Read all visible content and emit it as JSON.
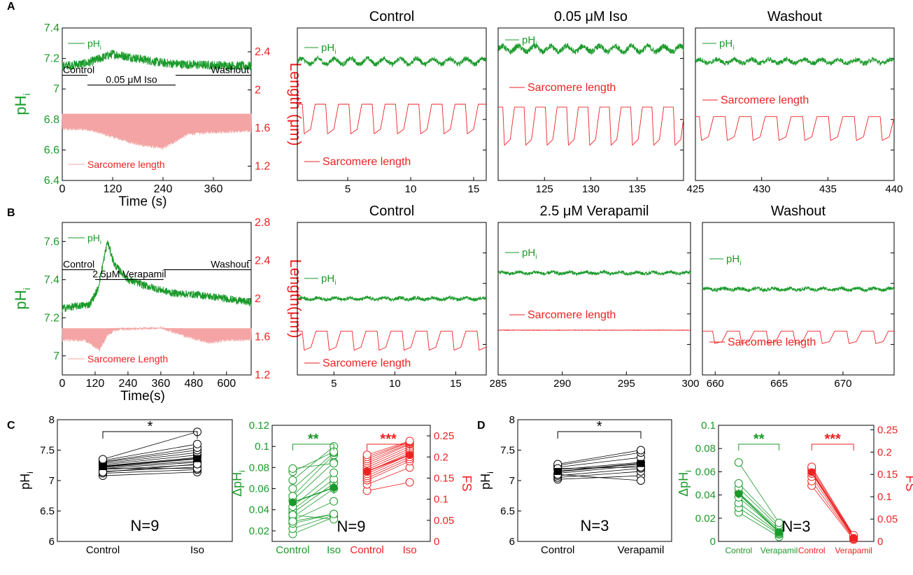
{
  "colors": {
    "green": "#1a9a2a",
    "red": "#ee2222",
    "pink": "#f4a4a4",
    "black": "#000000"
  },
  "panel_labels": [
    "A",
    "B",
    "C",
    "D"
  ],
  "chart_data": [
    {
      "id": "A-overview",
      "type": "line",
      "xlabel": "Time (s)",
      "xlim": [
        0,
        450
      ],
      "xticks": [
        "0",
        "120",
        "240",
        "360"
      ],
      "y_left": {
        "label": "pH",
        "label_sub": "i",
        "lim": [
          6.4,
          7.4
        ],
        "ticks": [
          "6.4",
          "6.6",
          "6.8",
          "7",
          "7.2",
          "7.4"
        ]
      },
      "y_right": {
        "label": "Length (μm)",
        "lim": [
          1.05,
          2.65
        ],
        "ticks": [
          "1.2",
          "1.6",
          "2",
          "2.4"
        ]
      },
      "legend": {
        "ph": "pH",
        "ph_sub": "i",
        "sl": "Sarcomere length"
      },
      "protocol": [
        {
          "label": "Control",
          "x": [
            0,
            60
          ]
        },
        {
          "label": "0.05 μM Iso",
          "x": [
            60,
            270
          ]
        },
        {
          "label": "Washout",
          "x": [
            270,
            450
          ]
        }
      ],
      "series": [
        {
          "name": "pH",
          "trace": "noise",
          "mean": [
            [
              0,
              7.15
            ],
            [
              60,
              7.17
            ],
            [
              120,
              7.23
            ],
            [
              180,
              7.2
            ],
            [
              240,
              7.17
            ],
            [
              300,
              7.16
            ],
            [
              450,
              7.15
            ]
          ],
          "amp": 0.03
        },
        {
          "name": "Sarcomere length",
          "trace": "band",
          "top": [
            [
              0,
              1.75
            ],
            [
              450,
              1.75
            ]
          ],
          "bottom": [
            [
              0,
              1.57
            ],
            [
              60,
              1.57
            ],
            [
              120,
              1.49
            ],
            [
              180,
              1.41
            ],
            [
              240,
              1.37
            ],
            [
              300,
              1.52
            ],
            [
              360,
              1.54
            ],
            [
              450,
              1.55
            ]
          ]
        }
      ]
    },
    {
      "id": "A-control",
      "type": "line",
      "title": "Control",
      "xlim": [
        1,
        16
      ],
      "xticks": [
        "5",
        "10",
        "15"
      ],
      "ylim": [
        1.05,
        2.65
      ],
      "legend": {
        "ph": "pH",
        "ph_sub": "i",
        "sl": "Sarcomere length"
      },
      "series": [
        {
          "name": "pH",
          "trace": "noise",
          "base": 2.3,
          "amp": 0.025,
          "wave": 0.03
        },
        {
          "name": "Sarcomere length",
          "trace": "twitch",
          "peak": 1.85,
          "trough": 1.54,
          "period": 1.85,
          "start": 1.4
        }
      ]
    },
    {
      "id": "A-iso",
      "type": "line",
      "title": "0.05 μM Iso",
      "xlim": [
        120,
        140
      ],
      "xticks": [
        "125",
        "130",
        "135"
      ],
      "ylim": [
        1.05,
        2.65
      ],
      "legend": {
        "ph": "pH",
        "ph_sub": "i",
        "sl": "Sarcomere length"
      },
      "series": [
        {
          "name": "pH",
          "trace": "noise",
          "base": 2.43,
          "amp": 0.03,
          "wave": 0.03
        },
        {
          "name": "Sarcomere length",
          "trace": "twitch",
          "peak": 1.82,
          "trough": 1.42,
          "period": 2.3,
          "start": 120.5
        }
      ]
    },
    {
      "id": "A-washout",
      "type": "line",
      "title": "Washout",
      "xlim": [
        425,
        440
      ],
      "xticks": [
        "425",
        "430",
        "435",
        "440"
      ],
      "ylim": [
        1.05,
        2.65
      ],
      "legend": {
        "ph": "pH",
        "ph_sub": "i",
        "sl": "Sarcomere length"
      },
      "series": [
        {
          "name": "pH",
          "trace": "noise",
          "base": 2.3,
          "amp": 0.025,
          "wave": 0.02
        },
        {
          "name": "Sarcomere length",
          "trace": "twitch",
          "peak": 1.72,
          "trough": 1.47,
          "period": 1.95,
          "start": 425.3
        }
      ]
    },
    {
      "id": "B-overview",
      "type": "line",
      "xlabel": "Time(s)",
      "xlim": [
        0,
        690
      ],
      "xticks": [
        "0",
        "120",
        "240",
        "360",
        "480",
        "600"
      ],
      "y_left": {
        "label": "pH",
        "label_sub": "i",
        "lim": [
          6.9,
          7.7
        ],
        "ticks": [
          "7",
          "7.2",
          "7.4",
          "7.6"
        ]
      },
      "y_right": {
        "label": "Length(μm)",
        "lim": [
          1.2,
          2.8
        ],
        "ticks": [
          "1.2",
          "1.6",
          "2",
          "2.4",
          "2.8"
        ]
      },
      "legend": {
        "ph": "pH",
        "ph_sub": "i",
        "sl": "Sarcomere Length"
      },
      "protocol": [
        {
          "label": "Control",
          "x": [
            0,
            120
          ]
        },
        {
          "label": "2.5μM Verapamil",
          "x": [
            120,
            370
          ]
        },
        {
          "label": "Washout",
          "x": [
            370,
            690
          ]
        }
      ],
      "series": [
        {
          "name": "pH",
          "trace": "noise",
          "mean": [
            [
              0,
              7.25
            ],
            [
              100,
              7.27
            ],
            [
              130,
              7.35
            ],
            [
              165,
              7.6
            ],
            [
              190,
              7.48
            ],
            [
              240,
              7.4
            ],
            [
              300,
              7.37
            ],
            [
              400,
              7.33
            ],
            [
              500,
              7.32
            ],
            [
              600,
              7.3
            ],
            [
              690,
              7.28
            ]
          ],
          "amp": 0.02
        },
        {
          "name": "Sarcomere Length",
          "trace": "band",
          "top": [
            [
              0,
              1.69
            ],
            [
              690,
              1.69
            ]
          ],
          "bottom": [
            [
              0,
              1.55
            ],
            [
              80,
              1.55
            ],
            [
              110,
              1.5
            ],
            [
              135,
              1.44
            ],
            [
              165,
              1.6
            ],
            [
              200,
              1.66
            ],
            [
              360,
              1.68
            ],
            [
              400,
              1.64
            ],
            [
              460,
              1.58
            ],
            [
              540,
              1.52
            ],
            [
              600,
              1.55
            ],
            [
              690,
              1.55
            ]
          ]
        }
      ]
    },
    {
      "id": "B-control",
      "type": "line",
      "title": "Control",
      "xlim": [
        2,
        17.5
      ],
      "xticks": [
        "5",
        "10",
        "15"
      ],
      "ylim": [
        1.2,
        2.8
      ],
      "legend": {
        "ph": "pH",
        "ph_sub": "i",
        "sl": "Sarcomere length"
      },
      "series": [
        {
          "name": "pH",
          "trace": "noise",
          "base": 2.0,
          "amp": 0.018,
          "wave": 0.01
        },
        {
          "name": "Sarcomere length",
          "trace": "twitch",
          "peak": 1.66,
          "trough": 1.46,
          "period": 2.05,
          "start": 2.4
        }
      ]
    },
    {
      "id": "B-verapamil",
      "type": "line",
      "title": "2.5 μM Verapamil",
      "xlim": [
        285,
        300
      ],
      "xticks": [
        "285",
        "290",
        "295",
        "300"
      ],
      "ylim": [
        1.2,
        2.8
      ],
      "legend": {
        "ph": "pH",
        "ph_sub": "i",
        "sl": "Sarcomere length"
      },
      "series": [
        {
          "name": "pH",
          "trace": "noise",
          "base": 2.27,
          "amp": 0.018,
          "wave": 0.01
        },
        {
          "name": "Sarcomere length",
          "trace": "flat",
          "base": 1.67
        }
      ]
    },
    {
      "id": "B-washout",
      "type": "line",
      "title": "Washout",
      "xlim": [
        659,
        674
      ],
      "xticks": [
        "660",
        "665",
        "670"
      ],
      "ylim": [
        1.2,
        2.8
      ],
      "legend": {
        "ph": "pH",
        "ph_sub": "i",
        "sl": "Sarcomere length"
      },
      "series": [
        {
          "name": "pH",
          "trace": "noise",
          "base": 2.1,
          "amp": 0.018,
          "wave": 0.01
        },
        {
          "name": "Sarcomere length",
          "trace": "twitch",
          "peak": 1.66,
          "trough": 1.53,
          "period": 2.1,
          "start": 659.8
        }
      ]
    },
    {
      "id": "C-ph",
      "type": "scatter",
      "categories": [
        "Control",
        "Iso"
      ],
      "ylabel": "pH",
      "ylabel_sub": "i",
      "ylim": [
        6,
        8
      ],
      "yticks": [
        "6",
        "6.5",
        "7",
        "7.5",
        "8"
      ],
      "n_label": "N=9",
      "significance": "*",
      "mean": [
        7.23,
        7.36
      ],
      "err": [
        0.03,
        0.05
      ],
      "pairs": [
        [
          7.08,
          7.14
        ],
        [
          7.12,
          7.18
        ],
        [
          7.15,
          7.22
        ],
        [
          7.18,
          7.26
        ],
        [
          7.2,
          7.3
        ],
        [
          7.22,
          7.32
        ],
        [
          7.24,
          7.38
        ],
        [
          7.26,
          7.42
        ],
        [
          7.28,
          7.46
        ],
        [
          7.3,
          7.5
        ],
        [
          7.31,
          7.54
        ],
        [
          7.33,
          7.6
        ],
        [
          7.35,
          7.8
        ],
        [
          7.2,
          7.2
        ],
        [
          7.14,
          7.27
        ]
      ]
    },
    {
      "id": "C-dph-fs",
      "type": "scatter",
      "categories": [
        "Control",
        "Iso",
        "Control",
        "Iso"
      ],
      "y_left": {
        "label": "ΔpH",
        "label_sub": "i",
        "lim": [
          0.01,
          0.12
        ],
        "ticks": [
          "0.02",
          "0.04",
          "0.06",
          "0.08",
          "0.1",
          "0.12"
        ]
      },
      "y_right": {
        "label": "FS",
        "lim": [
          0,
          0.275
        ],
        "ticks": [
          "0",
          "0.05",
          "0.1",
          "0.15",
          "0.2",
          "0.25"
        ]
      },
      "n_label": "N=9",
      "significance_left": "**",
      "significance_right": "***",
      "mean_left": [
        0.047,
        0.061
      ],
      "err_left": [
        0.004,
        0.006
      ],
      "mean_right": [
        0.166,
        0.205
      ],
      "err_right": [
        0.006,
        0.007
      ],
      "pairs_left": [
        [
          0.017,
          0.033
        ],
        [
          0.022,
          0.035
        ],
        [
          0.027,
          0.036
        ],
        [
          0.03,
          0.048
        ],
        [
          0.033,
          0.06
        ],
        [
          0.037,
          0.065
        ],
        [
          0.04,
          0.069
        ],
        [
          0.043,
          0.075
        ],
        [
          0.049,
          0.085
        ],
        [
          0.053,
          0.092
        ],
        [
          0.06,
          0.094
        ],
        [
          0.068,
          0.1
        ],
        [
          0.076,
          0.095
        ],
        [
          0.079,
          0.084
        ],
        [
          0.035,
          0.031
        ],
        [
          0.029,
          0.036
        ]
      ],
      "pairs_right": [
        [
          0.12,
          0.14
        ],
        [
          0.135,
          0.175
        ],
        [
          0.145,
          0.19
        ],
        [
          0.15,
          0.195
        ],
        [
          0.155,
          0.2
        ],
        [
          0.16,
          0.205
        ],
        [
          0.165,
          0.21
        ],
        [
          0.17,
          0.215
        ],
        [
          0.175,
          0.22
        ],
        [
          0.18,
          0.225
        ],
        [
          0.185,
          0.23
        ],
        [
          0.19,
          0.232
        ],
        [
          0.195,
          0.235
        ],
        [
          0.2,
          0.236
        ],
        [
          0.205,
          0.238
        ]
      ]
    },
    {
      "id": "D-ph",
      "type": "scatter",
      "categories": [
        "Control",
        "Verapamil"
      ],
      "ylabel": "pH",
      "ylabel_sub": "i",
      "ylim": [
        6,
        8
      ],
      "yticks": [
        "6",
        "6.5",
        "7",
        "7.5",
        "8"
      ],
      "n_label": "N=3",
      "significance": "*",
      "mean": [
        7.15,
        7.28
      ],
      "err": [
        0.04,
        0.04
      ],
      "pairs": [
        [
          7.02,
          7.08
        ],
        [
          7.05,
          7.15
        ],
        [
          7.08,
          7.2
        ],
        [
          7.12,
          7.25
        ],
        [
          7.18,
          7.3
        ],
        [
          7.22,
          7.38
        ],
        [
          7.25,
          7.46
        ],
        [
          7.27,
          7.5
        ],
        [
          7.1,
          7.0
        ],
        [
          7.2,
          7.22
        ]
      ]
    },
    {
      "id": "D-dph-fs",
      "type": "scatter",
      "categories": [
        "Control",
        "Verapamil",
        "Control",
        "Verapamil"
      ],
      "y_left": {
        "label": "ΔpH",
        "label_sub": "i",
        "lim": [
          0,
          0.1
        ],
        "ticks": [
          "0",
          "0.02",
          "0.04",
          "0.06",
          "0.08",
          "0.1"
        ]
      },
      "y_right": {
        "label": "FS",
        "lim": [
          0,
          0.26
        ],
        "ticks": [
          "0",
          "0.05",
          "0.1",
          "0.15",
          "0.2",
          "0.25"
        ]
      },
      "n_label": "N=3",
      "significance_left": "**",
      "significance_right": "***",
      "mean_left": [
        0.041,
        0.008
      ],
      "err_left": [
        0.004,
        0.002
      ],
      "mean_right": [
        0.155,
        0.008
      ],
      "err_right": [
        0.006,
        0.002
      ],
      "pairs_left": [
        [
          0.025,
          0.004
        ],
        [
          0.029,
          0.006
        ],
        [
          0.033,
          0.007
        ],
        [
          0.038,
          0.008
        ],
        [
          0.042,
          0.01
        ],
        [
          0.046,
          0.012
        ],
        [
          0.05,
          0.014
        ],
        [
          0.068,
          0.016
        ]
      ],
      "pairs_right": [
        [
          0.125,
          0.004
        ],
        [
          0.135,
          0.006
        ],
        [
          0.145,
          0.008
        ],
        [
          0.152,
          0.01
        ],
        [
          0.158,
          0.011
        ],
        [
          0.163,
          0.012
        ],
        [
          0.167,
          0.014
        ]
      ]
    }
  ]
}
